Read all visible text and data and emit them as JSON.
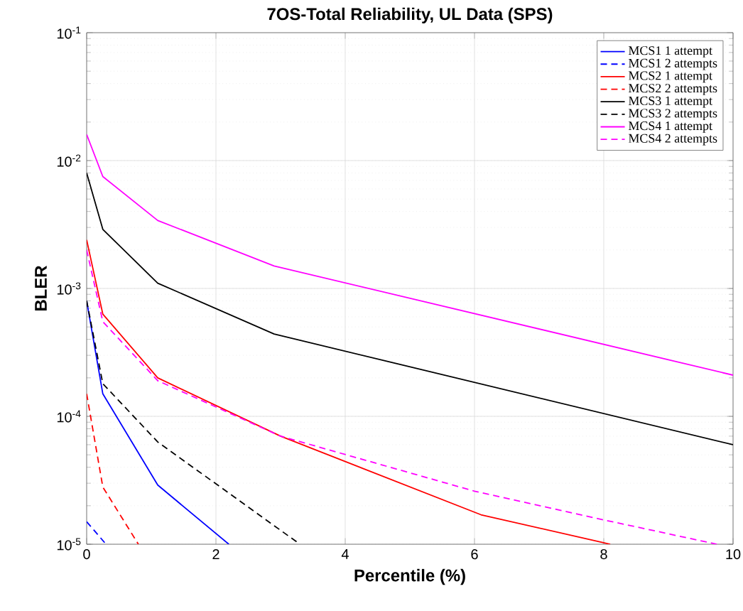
{
  "chart_data": {
    "type": "line",
    "title": "7OS-Total Reliability, UL Data (SPS)",
    "xlabel": "Percentile (%)",
    "ylabel": "BLER",
    "log": "y",
    "grid": true,
    "legend": "top right",
    "xlim": [
      0,
      10
    ],
    "xticks": [
      0,
      2,
      4,
      6,
      8,
      10
    ],
    "ylim": [
      1e-05,
      0.1
    ],
    "yticks": [
      {
        "value": 1e-05,
        "label": "10$^{-5}$"
      },
      {
        "value": 0.0001,
        "label": "10$^{-4}$"
      },
      {
        "value": 0.001,
        "label": "10$^{-3}$"
      },
      {
        "value": 0.01,
        "label": "10$^{-2}$"
      },
      {
        "value": 0.1,
        "label": "10$^{-1}$"
      }
    ],
    "series": [
      {
        "name": "MCS1 1 attempt",
        "color": "#0000ff",
        "line_style": "solid",
        "x": [
          0,
          0.25,
          1.1,
          2.2
        ],
        "values": [
          0.0008,
          0.00015,
          2.9e-05,
          1e-05
        ]
      },
      {
        "name": "MCS1 2 attempts",
        "color": "#0000ff",
        "line_style": "dashed",
        "x": [
          0,
          0.3
        ],
        "values": [
          1.5e-05,
          1e-05
        ]
      },
      {
        "name": "MCS2 1 attempt",
        "color": "#ff0000",
        "line_style": "solid",
        "x": [
          0,
          0.25,
          1.1,
          3,
          6.1,
          8.1
        ],
        "values": [
          0.0024,
          0.00063,
          0.0002,
          7e-05,
          1.7e-05,
          1e-05
        ]
      },
      {
        "name": "MCS2 2 attempts",
        "color": "#ff0000",
        "line_style": "dashed",
        "x": [
          0,
          0.25,
          0.8
        ],
        "values": [
          0.00015,
          2.8e-05,
          1e-05
        ]
      },
      {
        "name": "MCS3 1 attempt",
        "color": "#000000",
        "line_style": "solid",
        "x": [
          0,
          0.25,
          1.1,
          2.9,
          10
        ],
        "values": [
          0.008,
          0.0029,
          0.0011,
          0.00044,
          6e-05
        ]
      },
      {
        "name": "MCS3 2 attempts",
        "color": "#000000",
        "line_style": "dashed",
        "x": [
          0,
          0.25,
          1.1,
          3.3
        ],
        "values": [
          0.0008,
          0.00018,
          6.3e-05,
          1e-05
        ]
      },
      {
        "name": "MCS4 1 attempt",
        "color": "#ff00ff",
        "line_style": "solid",
        "x": [
          0,
          0.25,
          1.1,
          2.9,
          10
        ],
        "values": [
          0.016,
          0.0075,
          0.0034,
          0.0015,
          0.00021
        ]
      },
      {
        "name": "MCS4 2 attempts",
        "color": "#ff00ff",
        "line_style": "dashed",
        "x": [
          0,
          0.25,
          1.1,
          3,
          6,
          8,
          9.75
        ],
        "values": [
          0.002,
          0.00055,
          0.00019,
          7e-05,
          2.6e-05,
          1.55e-05,
          1e-05
        ]
      }
    ]
  }
}
